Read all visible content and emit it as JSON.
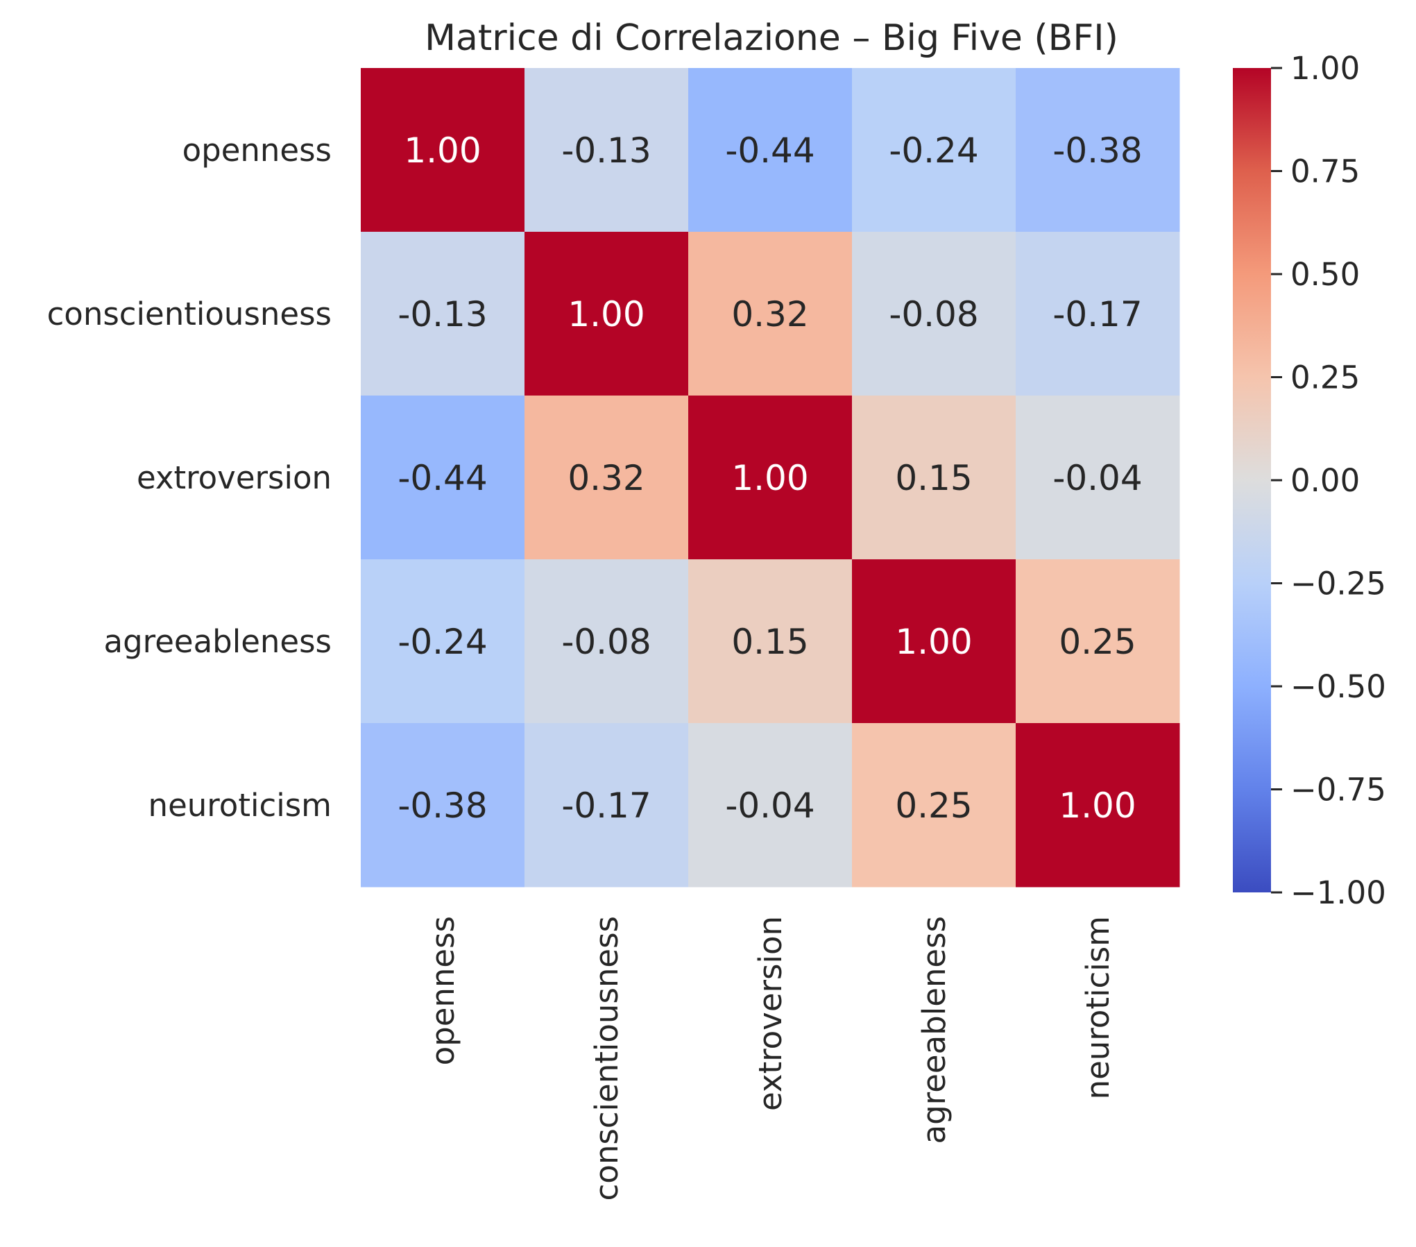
{
  "chart_data": {
    "type": "heatmap",
    "title": "Matrice di Correlazione – Big Five (BFI)",
    "rows": [
      "openness",
      "conscientiousness",
      "extroversion",
      "agreeableness",
      "neuroticism"
    ],
    "columns": [
      "openness",
      "conscientiousness",
      "extroversion",
      "agreeableness",
      "neuroticism"
    ],
    "values": [
      [
        1.0,
        -0.13,
        -0.44,
        -0.24,
        -0.38
      ],
      [
        -0.13,
        1.0,
        0.32,
        -0.08,
        -0.17
      ],
      [
        -0.44,
        0.32,
        1.0,
        0.15,
        -0.04
      ],
      [
        -0.24,
        -0.08,
        0.15,
        1.0,
        0.25
      ],
      [
        -0.38,
        -0.17,
        -0.04,
        0.25,
        1.0
      ]
    ],
    "value_format": "0.00",
    "colormap": "coolwarm",
    "colorbar": {
      "range": [
        -1.0,
        1.0
      ],
      "ticks": [
        1.0,
        0.75,
        0.5,
        0.25,
        0.0,
        -0.25,
        -0.5,
        -0.75,
        -1.0
      ],
      "tick_labels": [
        "1.00",
        "0.75",
        "0.50",
        "0.25",
        "0.00",
        "−0.25",
        "−0.50",
        "−0.75",
        "−1.00"
      ]
    },
    "colors": {
      "low": "#3b4cc0",
      "mid": "#dddddd",
      "high": "#b40426",
      "text_dark": "#262626",
      "text_light": "#ffffff"
    }
  }
}
